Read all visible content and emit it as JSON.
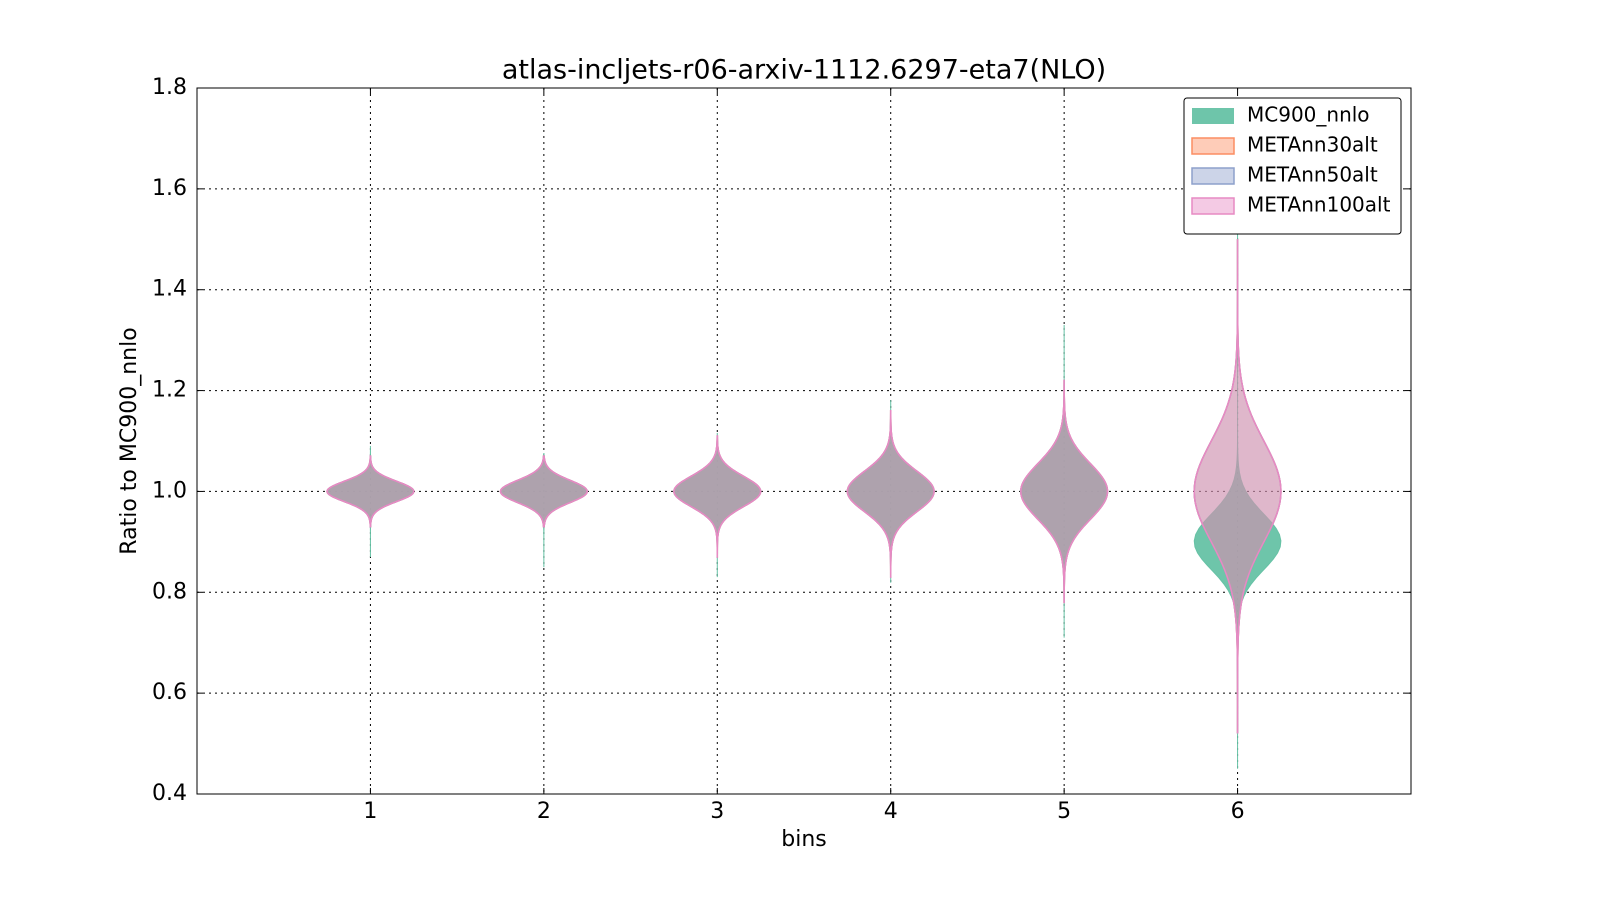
{
  "chart_data": {
    "type": "violin",
    "title": "atlas-incljets-r06-arxiv-1112.6297-eta7(NLO)",
    "xlabel": "bins",
    "ylabel": "Ratio to MC900_nnlo",
    "categories": [
      1,
      2,
      3,
      4,
      5,
      6
    ],
    "xlim": [
      0,
      7
    ],
    "xticks": [
      1,
      2,
      3,
      4,
      5,
      6
    ],
    "ylim": [
      0.4,
      1.8
    ],
    "yticks": [
      0.4,
      0.6,
      0.8,
      {
        "value": 1.0,
        "label": "1.0"
      },
      1.2,
      1.4,
      1.6,
      1.8
    ],
    "grid": true,
    "legend": "upper right",
    "series": [
      {
        "name": "MC900_nnlo",
        "color": "#66c2a5",
        "filled": true,
        "center": [
          1.0,
          1.0,
          1.0,
          1.0,
          1.0,
          0.9
        ],
        "spread": [
          0.02,
          0.022,
          0.03,
          0.04,
          0.055,
          0.055
        ],
        "min": [
          0.87,
          0.85,
          0.83,
          0.82,
          0.71,
          0.45
        ],
        "max": [
          1.09,
          1.075,
          1.115,
          1.18,
          1.33,
          1.55
        ]
      },
      {
        "name": "METAnn30alt",
        "color": "#fc8d62",
        "filled": false,
        "center": [
          1.0,
          1.0,
          1.0,
          1.0,
          1.0,
          1.0
        ],
        "spread": [
          0.02,
          0.022,
          0.03,
          0.04,
          0.055,
          0.1
        ],
        "min": [
          0.93,
          0.93,
          0.87,
          0.83,
          0.78,
          0.52
        ],
        "max": [
          1.07,
          1.07,
          1.11,
          1.16,
          1.22,
          1.5
        ]
      },
      {
        "name": "METAnn50alt",
        "color": "#8da0cb",
        "filled": false,
        "center": [
          1.0,
          1.0,
          1.0,
          1.0,
          1.0,
          1.0
        ],
        "spread": [
          0.02,
          0.022,
          0.03,
          0.04,
          0.055,
          0.1
        ],
        "min": [
          0.93,
          0.93,
          0.87,
          0.83,
          0.78,
          0.52
        ],
        "max": [
          1.07,
          1.07,
          1.11,
          1.16,
          1.22,
          1.5
        ]
      },
      {
        "name": "METAnn100alt",
        "color": "#e78ac3",
        "filled": false,
        "center": [
          1.0,
          1.0,
          1.0,
          1.0,
          1.0,
          1.0
        ],
        "spread": [
          0.02,
          0.022,
          0.03,
          0.04,
          0.055,
          0.1
        ],
        "min": [
          0.93,
          0.93,
          0.87,
          0.83,
          0.78,
          0.52
        ],
        "max": [
          1.07,
          1.07,
          1.11,
          1.16,
          1.22,
          1.5
        ]
      }
    ]
  }
}
